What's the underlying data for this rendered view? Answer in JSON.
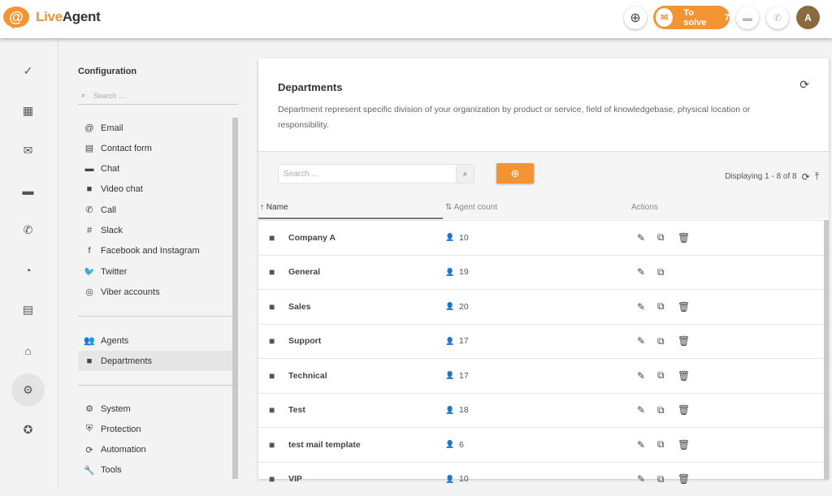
{
  "header": {
    "logo_mark": "@",
    "logo_live": "Live",
    "logo_agent": "Agent",
    "to_solve_label": "To solve",
    "to_solve_count": "7",
    "avatar_initial": "A",
    "accent": "#f39332"
  },
  "rail": [
    {
      "icon": "check-circle-icon",
      "g": "✓"
    },
    {
      "icon": "dashboard-icon",
      "g": "▦"
    },
    {
      "icon": "mail-icon",
      "g": "✉"
    },
    {
      "icon": "chat-icon",
      "g": "▬"
    },
    {
      "icon": "phone-icon",
      "g": "✆"
    },
    {
      "icon": "reports-icon",
      "g": "◔"
    },
    {
      "icon": "contacts-icon",
      "g": "▤"
    },
    {
      "icon": "knowledgebase-icon",
      "g": "⌂"
    },
    {
      "icon": "settings-icon",
      "g": "⚙",
      "active": true
    },
    {
      "icon": "plugins-icon",
      "g": "✪"
    }
  ],
  "config": {
    "title": "Configuration",
    "search_placeholder": "Search ...",
    "group1": [
      {
        "label": "Email",
        "g": "@"
      },
      {
        "label": "Contact form",
        "g": "▤"
      },
      {
        "label": "Chat",
        "g": "▬"
      },
      {
        "label": "Video chat",
        "g": "■"
      },
      {
        "label": "Call",
        "g": "✆"
      },
      {
        "label": "Slack",
        "g": "#"
      },
      {
        "label": "Facebook and Instagram",
        "g": "f"
      },
      {
        "label": "Twitter",
        "g": "🐦"
      },
      {
        "label": "Viber accounts",
        "g": "◎"
      }
    ],
    "group2": [
      {
        "label": "Agents",
        "g": "👥"
      },
      {
        "label": "Departments",
        "g": "■",
        "active": true
      }
    ],
    "group3": [
      {
        "label": "System",
        "g": "⚙"
      },
      {
        "label": "Protection",
        "g": "⛨"
      },
      {
        "label": "Automation",
        "g": "⟳"
      },
      {
        "label": "Tools",
        "g": "🔧"
      }
    ]
  },
  "main": {
    "title": "Departments",
    "description": "Department represent specific division of your organization by product or service, field of knowledgebase, physical location or responsibility.",
    "search_placeholder": "Search ...",
    "displaying": "Displaying 1 - 8 of 8",
    "columns": {
      "name": "Name",
      "agent_count": "Agent count",
      "actions": "Actions"
    },
    "rows": [
      {
        "name": "Company A",
        "count": "10",
        "delete": true
      },
      {
        "name": "General",
        "count": "19",
        "delete": false
      },
      {
        "name": "Sales",
        "count": "20",
        "delete": true
      },
      {
        "name": "Support",
        "count": "17",
        "delete": true
      },
      {
        "name": "Technical",
        "count": "17",
        "delete": true
      },
      {
        "name": "Test",
        "count": "18",
        "delete": true
      },
      {
        "name": "test mail template",
        "count": "6",
        "delete": true
      },
      {
        "name": "VIP",
        "count": "10",
        "delete": true
      }
    ]
  }
}
